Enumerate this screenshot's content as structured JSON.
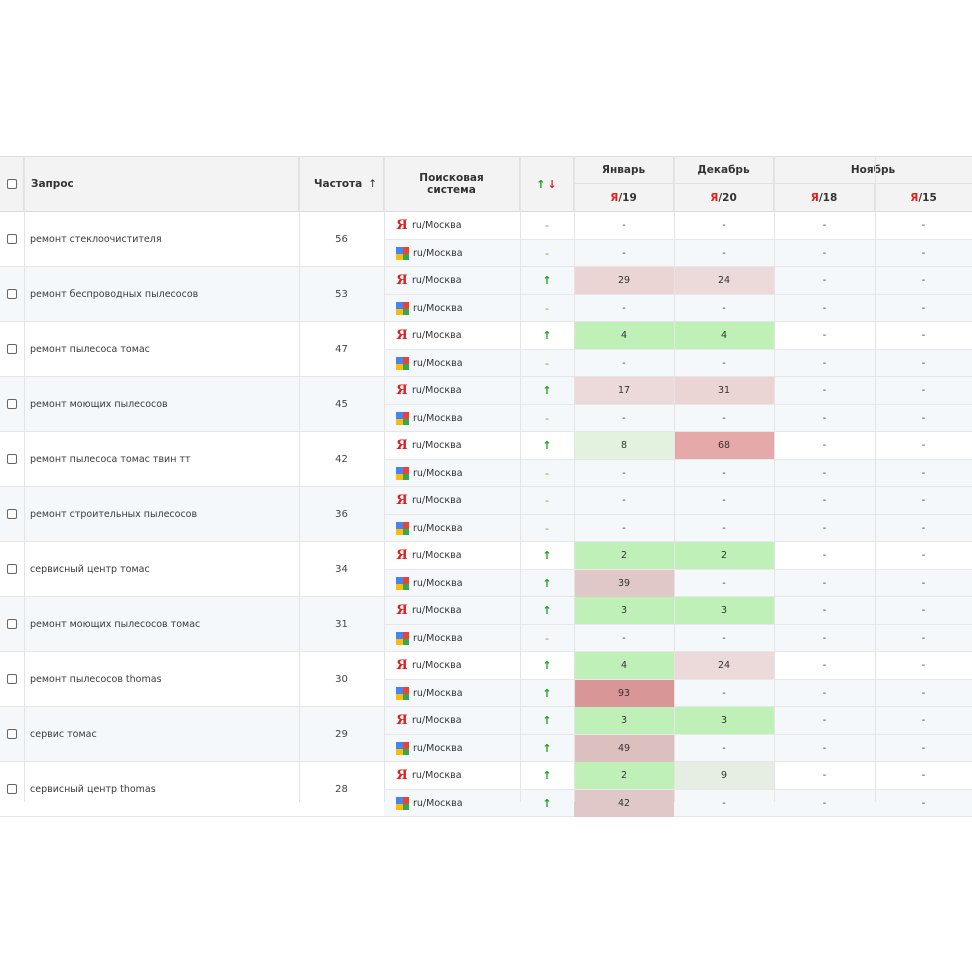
{
  "colors": {
    "up_arrow": "#1f9d1f",
    "down_arrow": "#e0201c",
    "yandex": "#e0201c",
    "good": "#bff0b8",
    "bad": "#ecd6d6"
  },
  "header": {
    "query": "Запрос",
    "frequency": "Частота",
    "sort_arrow": "↑",
    "engine": "Поисковая система",
    "trend_up": "↑",
    "trend_down": "↓",
    "months": [
      {
        "name": "Январь"
      },
      {
        "name": "Декабрь"
      },
      {
        "name": "Ноябрь"
      }
    ],
    "dates": [
      {
        "ya": "Я",
        "day": "/19"
      },
      {
        "ya": "Я",
        "day": "/20"
      },
      {
        "ya": "Я",
        "day": "/18"
      },
      {
        "ya": "Я",
        "day": "/15"
      }
    ]
  },
  "engines": {
    "yandex": "Я",
    "yandex_region": "ru/Москва",
    "google_region": "ru/Москва"
  },
  "rows": [
    {
      "query": "ремонт стеклоочистителя",
      "freq": "56",
      "ya": {
        "trend": "-",
        "vals": [
          "-",
          "-",
          "-",
          "-"
        ]
      },
      "gg": {
        "trend": "-",
        "vals": [
          "-",
          "-",
          "-",
          "-"
        ]
      }
    },
    {
      "query": "ремонт беспроводных пылесосов",
      "freq": "53",
      "ya": {
        "trend": "↑",
        "vals": [
          "29",
          "24",
          "-",
          "-"
        ]
      },
      "gg": {
        "trend": "-",
        "vals": [
          "-",
          "-",
          "-",
          "-"
        ]
      }
    },
    {
      "query": "ремонт пылесоса томас",
      "freq": "47",
      "ya": {
        "trend": "↑",
        "vals": [
          "4",
          "4",
          "-",
          "-"
        ]
      },
      "gg": {
        "trend": "-",
        "vals": [
          "-",
          "-",
          "-",
          "-"
        ]
      }
    },
    {
      "query": "ремонт моющих пылесосов",
      "freq": "45",
      "ya": {
        "trend": "↑",
        "vals": [
          "17",
          "31",
          "-",
          "-"
        ]
      },
      "gg": {
        "trend": "-",
        "vals": [
          "-",
          "-",
          "-",
          "-"
        ]
      }
    },
    {
      "query": "ремонт пылесоса томас твин тт",
      "freq": "42",
      "ya": {
        "trend": "↑",
        "vals": [
          "8",
          "68",
          "-",
          "-"
        ]
      },
      "gg": {
        "trend": "-",
        "vals": [
          "-",
          "-",
          "-",
          "-"
        ]
      }
    },
    {
      "query": "ремонт строительных пылесосов",
      "freq": "36",
      "ya": {
        "trend": "-",
        "vals": [
          "-",
          "-",
          "-",
          "-"
        ]
      },
      "gg": {
        "trend": "-",
        "vals": [
          "-",
          "-",
          "-",
          "-"
        ]
      }
    },
    {
      "query": "сервисный центр томас",
      "freq": "34",
      "ya": {
        "trend": "↑",
        "vals": [
          "2",
          "2",
          "-",
          "-"
        ]
      },
      "gg": {
        "trend": "↑",
        "vals": [
          "39",
          "-",
          "-",
          "-"
        ]
      }
    },
    {
      "query": "ремонт моющих пылесосов томас",
      "freq": "31",
      "ya": {
        "trend": "↑",
        "vals": [
          "3",
          "3",
          "-",
          "-"
        ]
      },
      "gg": {
        "trend": "-",
        "vals": [
          "-",
          "-",
          "-",
          "-"
        ]
      }
    },
    {
      "query": "ремонт пылесосов thomas",
      "freq": "30",
      "ya": {
        "trend": "↑",
        "vals": [
          "4",
          "24",
          "-",
          "-"
        ]
      },
      "gg": {
        "trend": "↑",
        "vals": [
          "93",
          "-",
          "-",
          "-"
        ]
      }
    },
    {
      "query": "сервис томас",
      "freq": "29",
      "ya": {
        "trend": "↑",
        "vals": [
          "3",
          "3",
          "-",
          "-"
        ]
      },
      "gg": {
        "trend": "↑",
        "vals": [
          "49",
          "-",
          "-",
          "-"
        ]
      }
    },
    {
      "query": "сервисный центр thomas",
      "freq": "28",
      "ya": {
        "trend": "↑",
        "vals": [
          "2",
          "9",
          "-",
          "-"
        ]
      },
      "gg": {
        "trend": "↑",
        "vals": [
          "42",
          "-",
          "-",
          "-"
        ]
      }
    }
  ]
}
